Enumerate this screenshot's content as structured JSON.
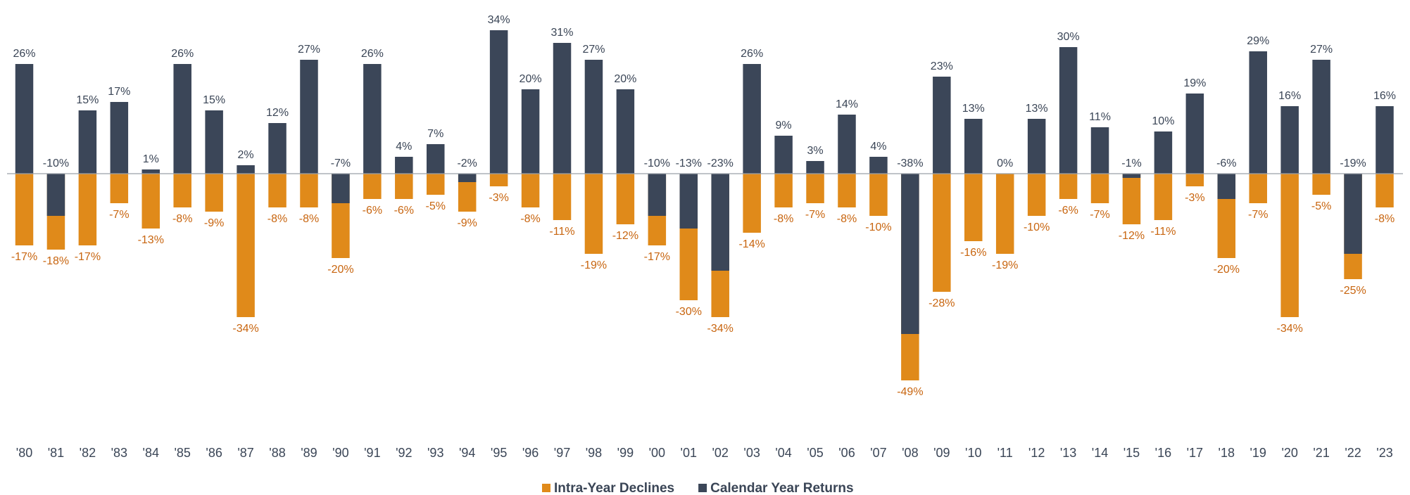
{
  "chart_data": {
    "type": "bar",
    "categories": [
      "'80",
      "'81",
      "'82",
      "'83",
      "'84",
      "'85",
      "'86",
      "'87",
      "'88",
      "'89",
      "'90",
      "'91",
      "'92",
      "'93",
      "'94",
      "'95",
      "'96",
      "'97",
      "'98",
      "'99",
      "'00",
      "'01",
      "'02",
      "'03",
      "'04",
      "'05",
      "'06",
      "'07",
      "'08",
      "'09",
      "'10",
      "'11",
      "'12",
      "'13",
      "'14",
      "'15",
      "'16",
      "'17",
      "'18",
      "'19",
      "'20",
      "'21",
      "'22",
      "'23"
    ],
    "series": [
      {
        "name": "Intra-Year Declines",
        "color": "#e08a1a",
        "values": [
          -17,
          -18,
          -17,
          -7,
          -13,
          -8,
          -9,
          -34,
          -8,
          -8,
          -20,
          -6,
          -6,
          -5,
          -9,
          -3,
          -8,
          -11,
          -19,
          -12,
          -17,
          -30,
          -34,
          -14,
          -8,
          -7,
          -8,
          -10,
          -49,
          -28,
          -16,
          -19,
          -10,
          -6,
          -7,
          -12,
          -11,
          -3,
          -20,
          -7,
          -34,
          -5,
          -25,
          -8
        ],
        "value_labels": [
          "-17%",
          "-18%",
          "-17%",
          "-7%",
          "-13%",
          "-8%",
          "-9%",
          "-34%",
          "-8%",
          "-8%",
          "-20%",
          "-6%",
          "-6%",
          "-5%",
          "-9%",
          "-3%",
          "-8%",
          "-11%",
          "-19%",
          "-12%",
          "-17%",
          "-30%",
          "-34%",
          "-14%",
          "-8%",
          "-7%",
          "-8%",
          "-10%",
          "-49%",
          "-28%",
          "-16%",
          "-19%",
          "-10%",
          "-6%",
          "-7%",
          "-12%",
          "-11%",
          "-3%",
          "-20%",
          "-7%",
          "-34%",
          "-5%",
          "-25%",
          "-8%"
        ]
      },
      {
        "name": "Calendar Year Returns",
        "color": "#3b4658",
        "values": [
          26,
          -10,
          15,
          17,
          1,
          26,
          15,
          2,
          12,
          27,
          -7,
          26,
          4,
          7,
          -2,
          34,
          20,
          31,
          27,
          20,
          -10,
          -13,
          -23,
          26,
          9,
          3,
          14,
          4,
          -38,
          23,
          13,
          0,
          13,
          30,
          11,
          -1,
          10,
          19,
          -6,
          29,
          16,
          27,
          -19,
          16
        ],
        "value_labels": [
          "26%",
          "-10%",
          "15%",
          "17%",
          "1%",
          "26%",
          "15%",
          "2%",
          "12%",
          "27%",
          "-7%",
          "26%",
          "4%",
          "7%",
          "-2%",
          "34%",
          "20%",
          "31%",
          "27%",
          "20%",
          "-10%",
          "-13%",
          "-23%",
          "26%",
          "9%",
          "3%",
          "14%",
          "4%",
          "-38%",
          "23%",
          "13%",
          "0%",
          "13%",
          "30%",
          "11%",
          "-1%",
          "10%",
          "19%",
          "-6%",
          "29%",
          "16%",
          "27%",
          "-19%",
          "16%"
        ]
      }
    ]
  }
}
